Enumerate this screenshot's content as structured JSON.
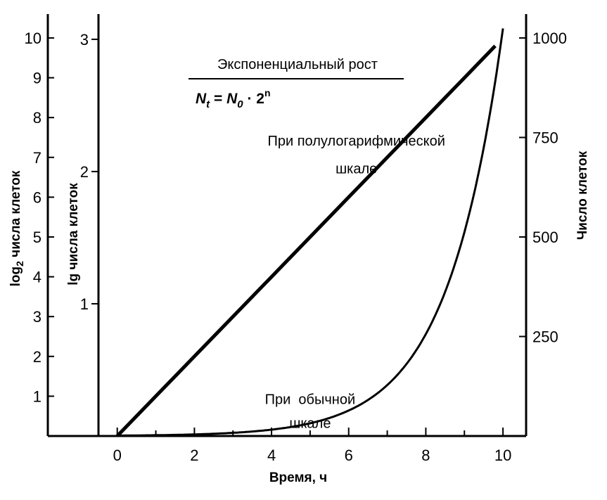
{
  "chart_data": {
    "type": "line",
    "title": "Экспоненциальный рост",
    "formula": {
      "lhs": "N",
      "lhs_sub": "t",
      "eq": " = ",
      "rhs": "N",
      "rhs_sub": "0",
      "dot": " · 2",
      "sup": "n"
    },
    "xlabel": "Время, ч",
    "ylabel_left_outer": {
      "base": "log",
      "sub": "2",
      "rest": " числа клеток"
    },
    "ylabel_left_inner": "lg числа клеток",
    "ylabel_right": "Число клеток",
    "xlim": [
      -1.8,
      10.6
    ],
    "ylim_log2": [
      0,
      10.6
    ],
    "x_ticks": [
      0,
      2,
      4,
      6,
      8,
      10
    ],
    "x_minor_ticks": [
      1,
      3,
      5,
      7,
      9
    ],
    "y_ticks_log2": [
      1,
      2,
      3,
      4,
      5,
      6,
      7,
      8,
      9,
      10
    ],
    "y_ticks_lg": [
      1,
      2,
      3
    ],
    "y_ticks_count": [
      250,
      500,
      750,
      1000
    ],
    "ylim_count": [
      0,
      1060
    ],
    "series": [
      {
        "name": "При полулогарифмической шкале",
        "scale": "log2",
        "x": [
          0,
          1,
          2,
          3,
          4,
          5,
          6,
          7,
          8,
          9,
          9.8
        ],
        "y": [
          0,
          1,
          2,
          3,
          4,
          5,
          6,
          7,
          8,
          9,
          9.8
        ]
      },
      {
        "name": "При обычной шкале",
        "scale": "count",
        "x": [
          0,
          1,
          2,
          3,
          4,
          5,
          6,
          7,
          8,
          8.5,
          9,
          9.5,
          9.8,
          10.0
        ],
        "y": [
          1,
          2,
          4,
          8,
          16,
          32,
          64,
          128,
          256,
          362,
          512,
          724,
          891,
          1024
        ]
      }
    ],
    "annotations": [
      {
        "text": "При полулогарифмической",
        "x": 6.2,
        "y": 7.3
      },
      {
        "text": "шкале",
        "x": 6.2,
        "y": 6.6
      },
      {
        "text": "При  обычной",
        "x": 5.0,
        "y": 0.8
      },
      {
        "text": "шкале",
        "x": 5.0,
        "y": 0.2
      }
    ],
    "grid": false,
    "legend": "none"
  }
}
